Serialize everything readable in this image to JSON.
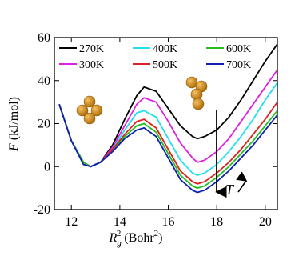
{
  "chart_data": {
    "type": "line",
    "x_label_parts": [
      "R",
      "g",
      "2",
      " (Bohr",
      "2",
      ")"
    ],
    "y_label_parts": [
      "F",
      " (kJ/mol)"
    ],
    "annotation": "T",
    "x": [
      11.5,
      12,
      12.5,
      12.8,
      13.2,
      13.7,
      14.2,
      14.7,
      15.0,
      15.5,
      16,
      16.5,
      17,
      17.2,
      17.5,
      18,
      18.5,
      19,
      19.5,
      20,
      20.5
    ],
    "series": [
      {
        "name": "270K",
        "color": "#000000",
        "values": [
          29,
          12,
          2,
          0,
          2,
          10,
          22,
          33,
          37,
          35,
          27,
          19,
          14,
          13,
          14,
          17,
          23,
          31,
          40,
          49,
          57
        ]
      },
      {
        "name": "300K",
        "color": "#e020e0",
        "values": [
          29,
          12,
          2,
          0,
          2,
          9,
          19,
          29,
          32,
          30,
          21,
          11,
          4,
          2,
          3,
          7,
          13,
          21,
          29,
          37,
          45
        ]
      },
      {
        "name": "400K",
        "color": "#20e0f0",
        "values": [
          29,
          12,
          2,
          0,
          2,
          8,
          17,
          25,
          26,
          23,
          13,
          3,
          -3,
          -4,
          -3,
          1,
          7,
          14,
          22,
          31,
          39
        ]
      },
      {
        "name": "500K",
        "color": "#e02020",
        "values": [
          29,
          12,
          2,
          0,
          2,
          8,
          15,
          21,
          22,
          18,
          8,
          -2,
          -7,
          -8,
          -7,
          -3,
          2,
          8,
          15,
          22,
          30
        ]
      },
      {
        "name": "600K",
        "color": "#20c020",
        "values": [
          29,
          12,
          2,
          0,
          2,
          7,
          14,
          19,
          20,
          16,
          6,
          -4,
          -9,
          -10,
          -9,
          -5,
          0,
          6,
          12,
          19,
          26
        ]
      },
      {
        "name": "700K",
        "color": "#1020b0",
        "values": [
          29,
          12,
          1,
          0,
          2,
          7,
          13,
          17,
          18,
          14,
          4,
          -6,
          -11,
          -12,
          -11,
          -7,
          -2,
          4,
          10,
          17,
          24
        ]
      }
    ],
    "xlim": [
      11.3,
      20.5
    ],
    "xticks": [
      12,
      14,
      16,
      18,
      20
    ],
    "ylim": [
      -20,
      60
    ],
    "yticks": [
      -20,
      0,
      20,
      40,
      60
    ]
  }
}
